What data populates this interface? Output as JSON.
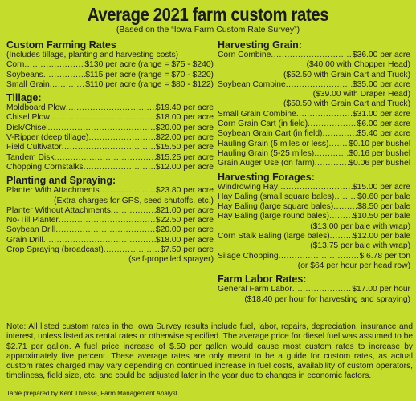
{
  "title": "Average 2021 farm custom rates",
  "subtitle": "(Based on the “Iowa Farm Custom Rate Survey”)",
  "left": {
    "custom_farming": {
      "title": "Custom Farming Rates",
      "subnote": "(Includes tillage, planting and harvesting costs)",
      "rows": [
        {
          "label": "Corn",
          "value": "$130 per acre  (range = $75 - $240)"
        },
        {
          "label": "Soybeans",
          "value": "$115 per acre  (range = $70 - $220)"
        },
        {
          "label": "Small Grain",
          "value": "$110 per acre  (range = $80 - $122)"
        }
      ]
    },
    "tillage": {
      "title": "Tillage:",
      "rows": [
        {
          "label": "Moldboard Plow",
          "value": "$19.40 per acre"
        },
        {
          "label": "Chisel Plow",
          "value": "$18.00 per acre"
        },
        {
          "label": "Disk/Chisel",
          "value": "$20.00 per acre"
        },
        {
          "label": "V-Ripper (deep tillage)",
          "value": "$22.00 per acre"
        },
        {
          "label": "Field Cultivator",
          "value": "$15.50 per acre"
        },
        {
          "label": "Tandem Disk",
          "value": "$15.25 per acre"
        },
        {
          "label": "Chopping Cornstalks",
          "value": "$12.00 per acre"
        }
      ]
    },
    "planting": {
      "title": "Planting and Spraying:",
      "row1": {
        "label": "Planter With Attachments",
        "value": "$23.80 per acre"
      },
      "row1_note": "(Extra charges for GPS, seed shutoffs, etc.)",
      "rows": [
        {
          "label": "Planter Without Attachments",
          "value": "$21.00 per acre"
        },
        {
          "label": "No-Till Planter",
          "value": "$22.50 per acre"
        },
        {
          "label": "Soybean Drill",
          "value": "$20.00 per acre"
        },
        {
          "label": "Grain Drill",
          "value": "$18.00 per acre"
        },
        {
          "label": "Crop Spraying (broadcast)",
          "value": "$7.50 per acre"
        }
      ],
      "last_note": "(self-propelled sprayer)"
    }
  },
  "right": {
    "harvesting_grain": {
      "title": "Harvesting Grain:",
      "corn": {
        "label": "Corn Combine",
        "value": "$36.00 per acre"
      },
      "corn_notes": [
        "($40.00 with Chopper Head)",
        "($52.50 with Grain Cart and Truck)"
      ],
      "soy": {
        "label": "Soybean Combine",
        "value": "$35.00 per acre"
      },
      "soy_notes": [
        "($39.00 with Draper Head)",
        "($50.50 with Grain Cart and Truck)"
      ],
      "rows": [
        {
          "label": "Small Grain Combine",
          "value": "$31.00 per acre"
        },
        {
          "label": "Corn Grain Cart (in field)",
          "value": "$6.00 per acre"
        },
        {
          "label": "Soybean Grain Cart (in field)",
          "value": "$5.40 per acre"
        },
        {
          "label": "Hauling Grain (5 miles or less)",
          "value": "$0.10 per bushel"
        },
        {
          "label": "Hauling Grain (5-25 miles)",
          "value": "$0.16 per bushel"
        },
        {
          "label": "Grain Auger Use (on farm)",
          "value": "$0.06 per bushel"
        }
      ]
    },
    "harvesting_forages": {
      "title": "Harvesting Forages:",
      "rows": [
        {
          "label": "Windrowing Hay",
          "value": "$15.00 per acre"
        },
        {
          "label": "Hay Baling (small square bales)",
          "value": "$0.60 per bale"
        },
        {
          "label": "Hay Baling (large square bales)",
          "value": "$8.50 per bale"
        },
        {
          "label": "Hay Baling (large round bales)",
          "value": "$10.50 per bale"
        }
      ],
      "round_note": "($13.00 per bale with wrap)",
      "stalk": {
        "label": "Corn Stalk Baling (large bales)",
        "value": "$12.00 per bale"
      },
      "stalk_note": "($13.75 per bale with wrap)",
      "silage": {
        "label": "Silage Chopping",
        "value": "$ 6.78 per ton"
      },
      "silage_note": "(or $64 per hour per head row)"
    },
    "labor": {
      "title": "Farm Labor Rates:",
      "row": {
        "label": "General Farm Labor",
        "value": "$17.00 per hour"
      },
      "note": "($18.40 per hour for harvesting and spraying)"
    }
  },
  "note": "Note: All listed custom rates in the Iowa Survey results include fuel, labor, repairs, depreciation, insurance and interest, unless listed as rental rates or otherwise specified. The average price for diesel fuel was assumed to be $2.71 per gallon. A fuel price increase of $.50 per gallon would cause most custom rates to increase by approximately five percent. These average rates are only meant to be a guide for custom rates, as actual custom rates charged may vary depending on continued increase in fuel costs, availability of custom operators, timeliness, field size, etc. and could be adjusted later in the year due to changes in economic factors.",
  "credit": "Table prepared by Kent Thiesse, Farm Management Analyst",
  "colors": {
    "background": "#c4dc2c",
    "text": "#1b1b1b"
  }
}
